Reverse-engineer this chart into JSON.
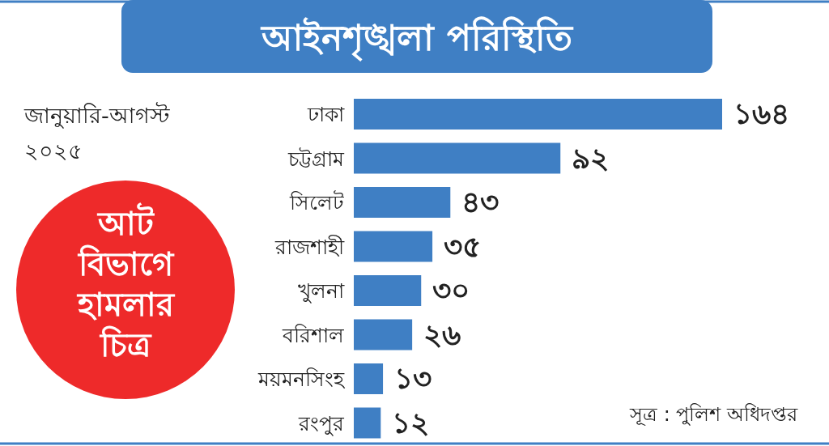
{
  "chart_data": {
    "type": "bar",
    "orientation": "horizontal",
    "title": "আইনশৃঙ্খলা পরিস্থিতি",
    "subtitle": "জানুয়ারি-আগস্ট ২০২৫",
    "categories": [
      "ঢাকা",
      "চট্টগ্রাম",
      "সিলেট",
      "রাজশাহী",
      "খুলনা",
      "বরিশাল",
      "ময়মনসিংহ",
      "রংপুর"
    ],
    "values": [
      164,
      92,
      43,
      35,
      30,
      26,
      13,
      12
    ],
    "value_labels": [
      "১৬৪",
      "৯২",
      "৪৩",
      "৩৫",
      "৩০",
      "২৬",
      "১৩",
      "১২"
    ],
    "color": "#3f7fc4",
    "annotations": [
      "আট বিভাগে হামলার চিত্র",
      "সূত্র : পুলিশ অধিদপ্তর"
    ]
  }
}
